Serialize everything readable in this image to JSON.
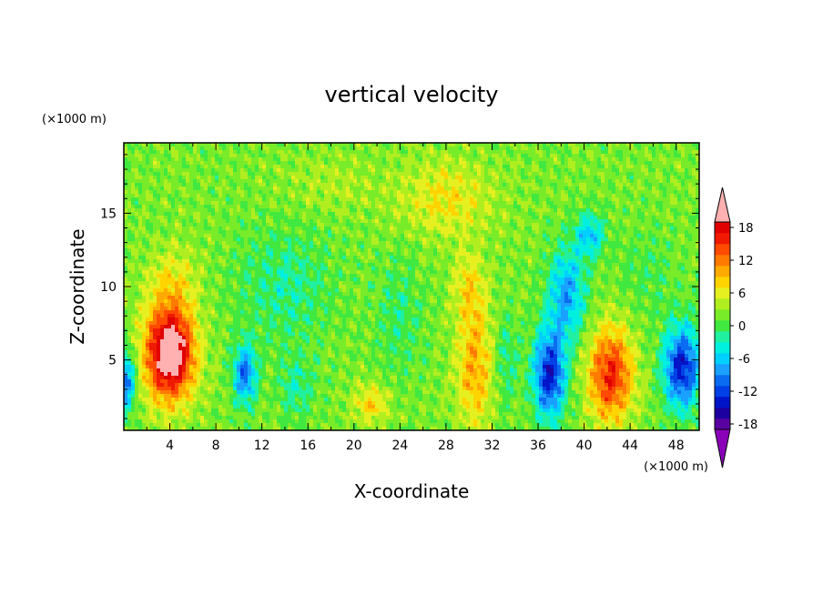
{
  "chart_data": {
    "type": "heatmap",
    "title": "vertical velocity",
    "xlabel": "X-coordinate",
    "ylabel": "Z-coordinate",
    "x_unit": "(×1000 m)",
    "y_unit": "(×1000 m)",
    "xlim": [
      0,
      50
    ],
    "ylim": [
      0.2,
      19.8
    ],
    "x_ticks": [
      "4",
      "8",
      "12",
      "16",
      "20",
      "24",
      "28",
      "32",
      "36",
      "40",
      "44",
      "48"
    ],
    "y_ticks": [
      "5",
      "10",
      "15"
    ],
    "colorbar": {
      "levels": [
        -20,
        -18,
        -16,
        -14,
        -12,
        -10,
        -8,
        -6,
        -4,
        -2,
        0,
        2,
        4,
        6,
        8,
        10,
        12,
        14,
        16,
        18,
        20
      ],
      "labels": [
        "-18",
        "-12",
        "-6",
        "0",
        "6",
        "12",
        "18"
      ],
      "colors": [
        "#8a00b8",
        "#5a00a0",
        "#1d00a0",
        "#0014c8",
        "#0040e6",
        "#0a6cf0",
        "#1aa0ff",
        "#00d0ff",
        "#00f0e0",
        "#20f0a0",
        "#40e840",
        "#78ec28",
        "#b0ee20",
        "#e6f020",
        "#ffd400",
        "#ffaa00",
        "#ff7a00",
        "#ff4a00",
        "#f01a00",
        "#e00000",
        "#ffb0b0"
      ],
      "extend": "both"
    },
    "features": [
      {
        "x": 4.0,
        "z": 5.5,
        "sx": 2.1,
        "sz": 3.2,
        "amp": 22
      },
      {
        "x": 4.3,
        "z": 10.5,
        "sx": 2.2,
        "sz": 2.2,
        "amp": 4
      },
      {
        "x": 10.5,
        "z": 4.0,
        "sx": 1.0,
        "sz": 2.0,
        "amp": -12
      },
      {
        "x": 21.5,
        "z": 2.0,
        "sx": 1.5,
        "sz": 1.3,
        "amp": 6
      },
      {
        "x": 30.5,
        "z": 4.5,
        "sx": 1.6,
        "sz": 4.0,
        "amp": 8
      },
      {
        "x": 30.0,
        "z": 10.0,
        "sx": 1.4,
        "sz": 2.5,
        "amp": 5
      },
      {
        "x": 33.2,
        "z": 5.0,
        "sx": 1.0,
        "sz": 3.0,
        "amp": -4
      },
      {
        "x": 37.0,
        "z": 4.0,
        "sx": 1.4,
        "sz": 3.0,
        "amp": -16
      },
      {
        "x": 38.5,
        "z": 9.5,
        "sx": 1.6,
        "sz": 3.0,
        "amp": -10
      },
      {
        "x": 40.5,
        "z": 13.5,
        "sx": 1.3,
        "sz": 1.5,
        "amp": -8
      },
      {
        "x": 42.3,
        "z": 4.0,
        "sx": 1.9,
        "sz": 3.2,
        "amp": 14
      },
      {
        "x": 48.5,
        "z": 4.5,
        "sx": 1.6,
        "sz": 2.8,
        "amp": -16
      },
      {
        "x": 0.2,
        "z": 3.5,
        "sx": 0.8,
        "sz": 2.0,
        "amp": -12
      },
      {
        "x": 28.0,
        "z": 16.0,
        "sx": 4.0,
        "sz": 2.5,
        "amp": 5
      },
      {
        "x": 18.0,
        "z": 17.0,
        "sx": 4.0,
        "sz": 2.0,
        "amp": 2
      },
      {
        "x": 14.0,
        "z": 10.0,
        "sx": 4.0,
        "sz": 4.0,
        "amp": -4
      },
      {
        "x": 24.0,
        "z": 8.0,
        "sx": 2.0,
        "sz": 4.0,
        "amp": -3
      },
      {
        "x": 45.5,
        "z": 11.0,
        "sx": 2.5,
        "sz": 3.0,
        "amp": -2
      },
      {
        "x": 15.0,
        "z": 3.0,
        "sx": 1.5,
        "sz": 2.0,
        "amp": -4
      }
    ]
  }
}
